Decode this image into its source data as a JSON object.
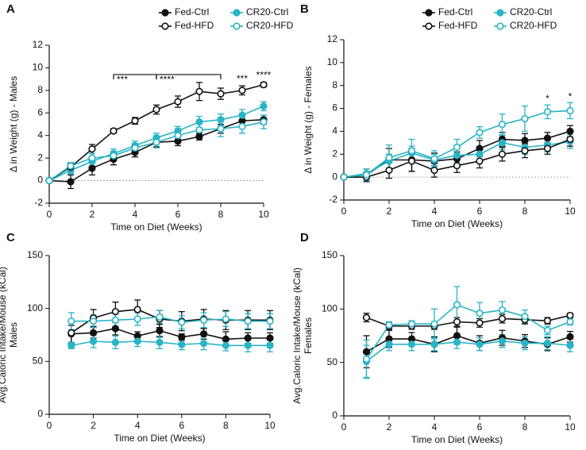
{
  "chart_data": [
    {
      "type": "line",
      "label": "A",
      "xlabel": "Time on Diet (Weeks)",
      "ylabel": [
        "Δ in Weight (g) - Males"
      ],
      "x": [
        0,
        1,
        2,
        3,
        4,
        5,
        6,
        7,
        8,
        9,
        10
      ],
      "xlim": [
        0,
        10
      ],
      "xticks": [
        0,
        2,
        4,
        6,
        8,
        10
      ],
      "ylim": [
        -2,
        12
      ],
      "yticks": [
        -2,
        0,
        2,
        4,
        6,
        8,
        10,
        12
      ],
      "zero_line": true,
      "legend": true,
      "series": [
        {
          "name": "Fed-Ctrl",
          "color": "#111111",
          "filled": true,
          "values": [
            0,
            -0.1,
            1.1,
            1.9,
            2.5,
            3.4,
            3.5,
            3.9,
            4.6,
            5.3,
            5.4
          ],
          "errors": [
            0,
            0.6,
            0.6,
            0.5,
            0.4,
            0.4,
            0.4,
            0.3,
            0.4,
            0.4,
            0.4
          ]
        },
        {
          "name": "CR20-Ctrl",
          "color": "#29b4c6",
          "filled": true,
          "values": [
            0,
            0.9,
            1.7,
            2.4,
            3.1,
            3.8,
            4.4,
            5.2,
            5.4,
            5.8,
            6.6
          ],
          "errors": [
            0,
            0.3,
            0.4,
            0.4,
            0.4,
            0.4,
            0.4,
            0.5,
            0.5,
            0.5,
            0.4
          ]
        },
        {
          "name": "Fed-HFD",
          "color": "#111111",
          "filled": false,
          "values": [
            0,
            1.2,
            2.8,
            4.4,
            5.3,
            6.3,
            7.0,
            7.9,
            7.7,
            8.0,
            8.5
          ],
          "errors": [
            0,
            0.3,
            0.4,
            0.2,
            0.3,
            0.4,
            0.5,
            0.8,
            0.5,
            0.4,
            0.2
          ]
        },
        {
          "name": "CR20-HFD",
          "color": "#29b4c6",
          "filled": false,
          "values": [
            0,
            1.3,
            2.0,
            2.2,
            2.9,
            3.4,
            4.0,
            4.5,
            4.6,
            4.8,
            5.2
          ],
          "errors": [
            0,
            0.3,
            0.4,
            0.4,
            0.4,
            0.5,
            0.6,
            0.6,
            0.7,
            0.6,
            0.6
          ]
        }
      ],
      "annotations": [
        {
          "text": "***",
          "x": [
            3,
            5
          ],
          "y": 9.4,
          "color": "#111111"
        },
        {
          "text": "****",
          "x": [
            5,
            8
          ],
          "y": 9.4,
          "color": "#111111"
        },
        {
          "text": "***",
          "x": 9,
          "y": 9.0,
          "color": "#111111"
        },
        {
          "text": "****",
          "x": 10,
          "y": 9.3,
          "color": "#111111"
        }
      ]
    },
    {
      "type": "line",
      "label": "B",
      "xlabel": "Time on Diet (Weeks)",
      "ylabel": [
        "Δ in Weight (g) - Females"
      ],
      "x": [
        0,
        1,
        2,
        3,
        4,
        5,
        6,
        7,
        8,
        9,
        10
      ],
      "xlim": [
        0,
        10
      ],
      "xticks": [
        0,
        2,
        4,
        6,
        8,
        10
      ],
      "ylim": [
        -2,
        12
      ],
      "yticks": [
        -2,
        0,
        2,
        4,
        6,
        8,
        10,
        12
      ],
      "zero_line": true,
      "legend": true,
      "series": [
        {
          "name": "Fed-Ctrl",
          "color": "#111111",
          "filled": true,
          "values": [
            0,
            0.2,
            1.5,
            1.5,
            1.4,
            1.6,
            2.5,
            3.3,
            3.2,
            3.4,
            4.0
          ],
          "errors": [
            0,
            0.5,
            1.0,
            1.0,
            0.7,
            0.6,
            0.7,
            0.6,
            0.6,
            0.5,
            0.5
          ]
        },
        {
          "name": "CR20-Ctrl",
          "color": "#29b4c6",
          "filled": true,
          "values": [
            0,
            0.3,
            1.4,
            2.1,
            1.5,
            1.9,
            2.0,
            3.0,
            2.6,
            2.8,
            3.1
          ],
          "errors": [
            0,
            0.4,
            0.6,
            0.6,
            0.5,
            0.6,
            0.6,
            0.6,
            0.6,
            0.6,
            0.6
          ]
        },
        {
          "name": "Fed-HFD",
          "color": "#111111",
          "filled": false,
          "values": [
            0,
            0.0,
            0.6,
            1.4,
            0.6,
            1.0,
            1.4,
            2.0,
            2.3,
            2.5,
            3.3
          ],
          "errors": [
            0,
            0.4,
            0.7,
            0.9,
            0.6,
            0.6,
            0.6,
            0.6,
            0.6,
            0.5,
            0.6
          ]
        },
        {
          "name": "CR20-HFD",
          "color": "#29b4c6",
          "filled": false,
          "values": [
            0,
            0.2,
            1.7,
            2.3,
            1.6,
            2.6,
            3.9,
            4.6,
            5.1,
            5.7,
            5.8
          ],
          "errors": [
            0,
            0.5,
            1.1,
            1.0,
            0.7,
            0.7,
            0.5,
            0.9,
            1.1,
            0.6,
            0.7
          ]
        }
      ],
      "annotations": [
        {
          "text": "*",
          "x": 9,
          "y": 6.8,
          "color": "#29b4c6"
        },
        {
          "text": "*",
          "x": 10,
          "y": 7.0,
          "color": "#29b4c6"
        }
      ]
    },
    {
      "type": "line",
      "label": "C",
      "xlabel": "Time on Diet (Weeks)",
      "ylabel": [
        "Avg.Caloric Intake/Mouse (kCal)",
        "Males"
      ],
      "x": [
        1,
        2,
        3,
        4,
        5,
        6,
        7,
        8,
        9,
        10
      ],
      "xlim": [
        0,
        10
      ],
      "xticks": [
        0,
        2,
        4,
        6,
        8,
        10
      ],
      "ylim": [
        0,
        150
      ],
      "yticks": [
        0,
        50,
        100,
        150
      ],
      "zero_line": false,
      "legend": false,
      "series": [
        {
          "color": "#111111",
          "filled": true,
          "values": [
            76,
            77,
            81,
            74,
            79,
            73,
            76,
            71,
            72,
            72
          ],
          "errors": [
            8,
            5,
            6,
            4,
            6,
            3,
            5,
            7,
            5,
            5
          ]
        },
        {
          "color": "#29b4c6",
          "filled": true,
          "values": [
            65,
            69,
            68,
            69,
            68,
            66,
            67,
            65,
            65,
            65
          ],
          "errors": [
            3,
            6,
            6,
            5,
            6,
            5,
            6,
            5,
            6,
            6
          ]
        },
        {
          "color": "#111111",
          "filled": false,
          "values": [
            77,
            91,
            97,
            99,
            90,
            88,
            90,
            89,
            89,
            89
          ],
          "errors": [
            10,
            8,
            9,
            9,
            8,
            9,
            9,
            9,
            9,
            9
          ]
        },
        {
          "color": "#29b4c6",
          "filled": false,
          "values": [
            88,
            88,
            89,
            90,
            92,
            87,
            89,
            90,
            88,
            88
          ],
          "errors": [
            8,
            6,
            6,
            6,
            6,
            6,
            7,
            7,
            7,
            7
          ]
        }
      ],
      "annotations": []
    },
    {
      "type": "line",
      "label": "D",
      "xlabel": "Time on Diet (Weeks)",
      "ylabel": [
        "Avg.Caloric Intake/Mouse (kCal)",
        "Females"
      ],
      "x": [
        1,
        2,
        3,
        4,
        5,
        6,
        7,
        8,
        9,
        10
      ],
      "xlim": [
        0,
        10
      ],
      "xticks": [
        0,
        2,
        4,
        6,
        8,
        10
      ],
      "ylim": [
        0,
        150
      ],
      "yticks": [
        0,
        50,
        100,
        150
      ],
      "zero_line": false,
      "legend": false,
      "series": [
        {
          "color": "#111111",
          "filled": true,
          "values": [
            60,
            72,
            72,
            67,
            75,
            68,
            73,
            70,
            67,
            74
          ],
          "errors": [
            15,
            8,
            6,
            7,
            8,
            7,
            7,
            6,
            6,
            5
          ]
        },
        {
          "color": "#29b4c6",
          "filled": true,
          "values": [
            51,
            67,
            67,
            67,
            69,
            67,
            70,
            68,
            68,
            66
          ],
          "errors": [
            15,
            6,
            6,
            6,
            6,
            6,
            6,
            6,
            6,
            6
          ]
        },
        {
          "color": "#111111",
          "filled": false,
          "values": [
            92,
            84,
            84,
            84,
            88,
            87,
            91,
            90,
            89,
            94
          ],
          "errors": [
            4,
            3,
            3,
            3,
            4,
            4,
            4,
            4,
            3,
            2
          ]
        },
        {
          "color": "#29b4c6",
          "filled": false,
          "values": [
            53,
            85,
            86,
            86,
            104,
            96,
            99,
            93,
            80,
            88
          ],
          "errors": [
            18,
            3,
            3,
            14,
            17,
            10,
            8,
            6,
            4,
            3
          ]
        }
      ],
      "annotations": []
    }
  ]
}
